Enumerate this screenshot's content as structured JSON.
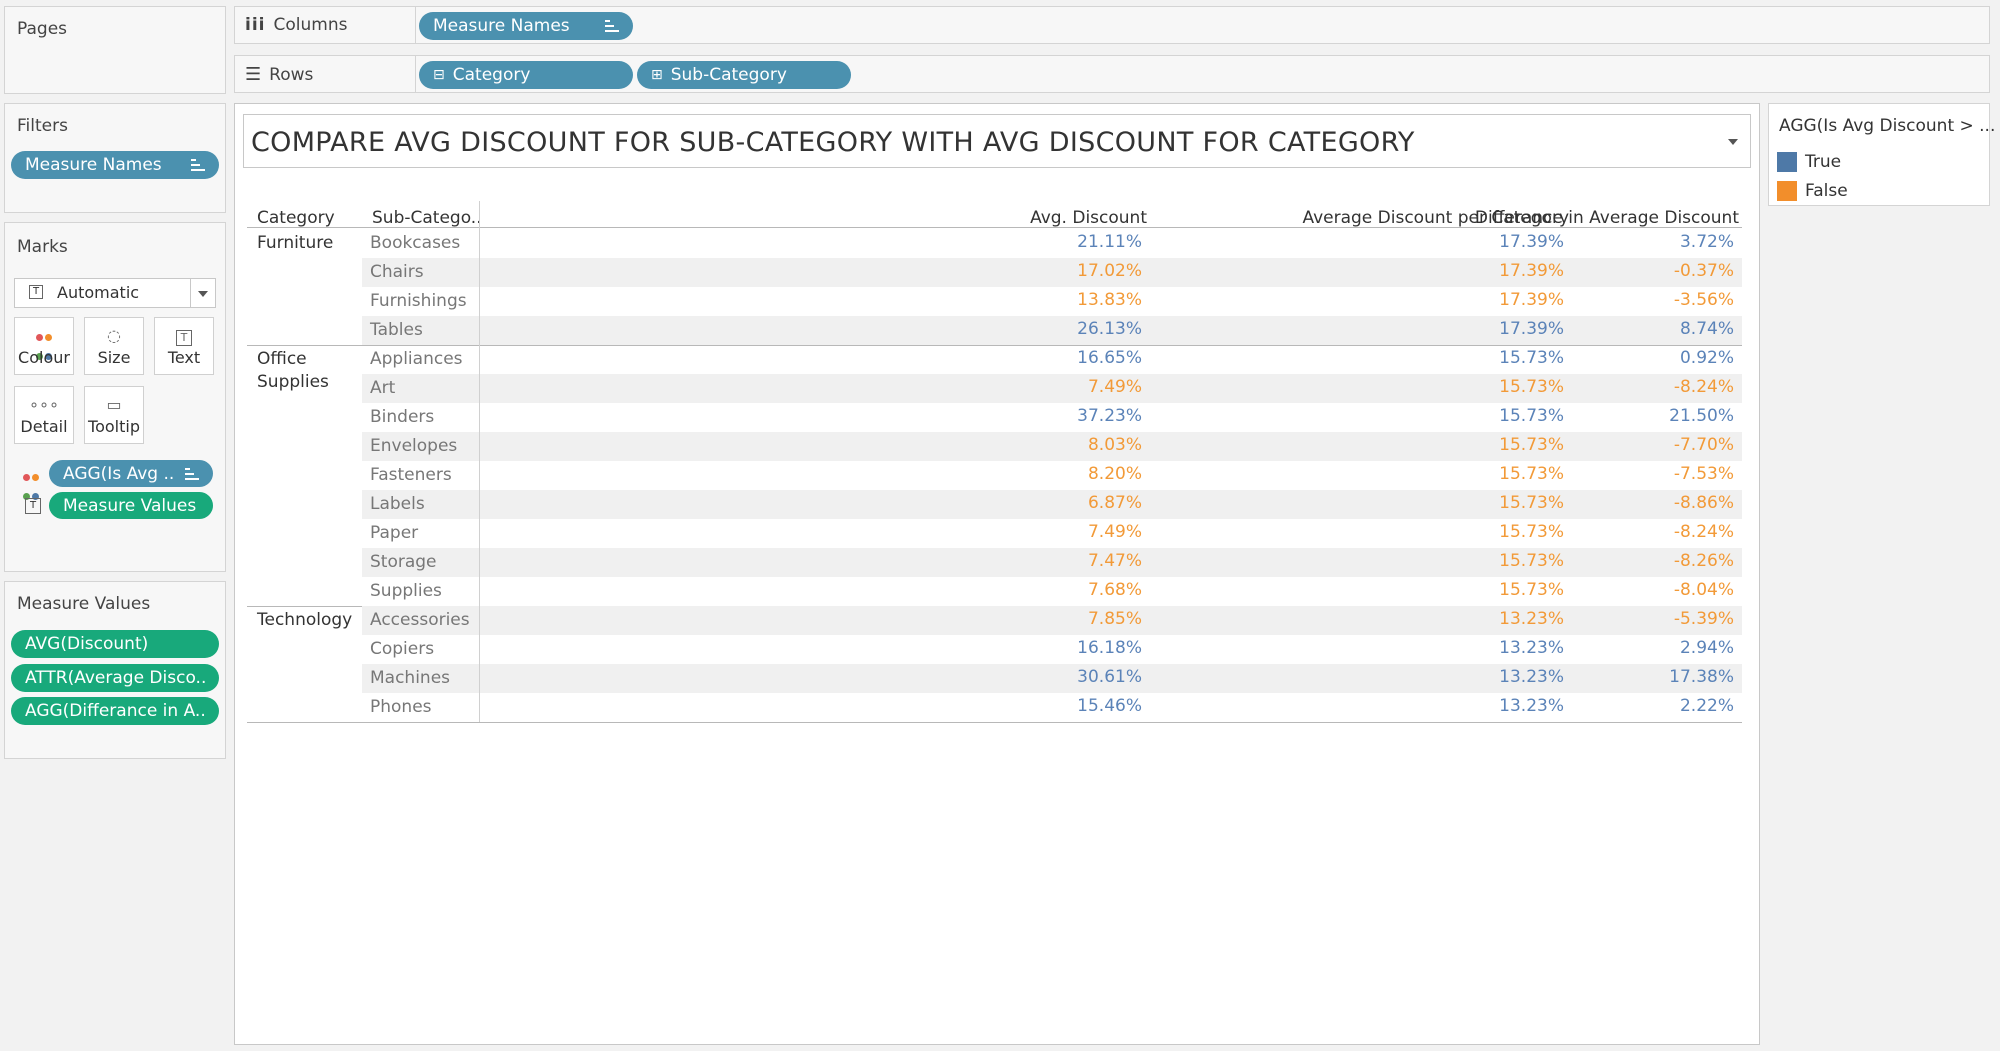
{
  "shelves": {
    "pages_label": "Pages",
    "columns_label": "Columns",
    "rows_label": "Rows",
    "columns_pill": "Measure Names",
    "rows_pills": [
      "Category",
      "Sub-Category"
    ]
  },
  "filters": {
    "title": "Filters",
    "pill": "Measure Names"
  },
  "marks": {
    "title": "Marks",
    "type_select": "Automatic",
    "buttons": [
      "Colour",
      "Size",
      "Text",
      "Detail",
      "Tooltip"
    ],
    "pills": [
      "AGG(Is Avg ..",
      "Measure Values"
    ]
  },
  "measure_values": {
    "title": "Measure Values",
    "pills": [
      "AVG(Discount)",
      "ATTR(Average Disco..",
      "AGG(Differance in A.."
    ]
  },
  "viz": {
    "title": "COMPARE AVG DISCOUNT FOR SUB-CATEGORY WITH AVG DISCOUNT FOR CATEGORY",
    "headers": [
      "Category",
      "Sub-Catego..",
      "Avg. Discount",
      "Average Discount per Category",
      "Differance in Average Discount"
    ],
    "groups": [
      {
        "category": "Furniture",
        "rows": [
          {
            "sub": "Bookcases",
            "avg": "21.11%",
            "cat": "17.39%",
            "diff": "3.72%",
            "flag": true
          },
          {
            "sub": "Chairs",
            "avg": "17.02%",
            "cat": "17.39%",
            "diff": "-0.37%",
            "flag": false
          },
          {
            "sub": "Furnishings",
            "avg": "13.83%",
            "cat": "17.39%",
            "diff": "-3.56%",
            "flag": false
          },
          {
            "sub": "Tables",
            "avg": "26.13%",
            "cat": "17.39%",
            "diff": "8.74%",
            "flag": true
          }
        ]
      },
      {
        "category": "Office Supplies",
        "rows": [
          {
            "sub": "Appliances",
            "avg": "16.65%",
            "cat": "15.73%",
            "diff": "0.92%",
            "flag": true
          },
          {
            "sub": "Art",
            "avg": "7.49%",
            "cat": "15.73%",
            "diff": "-8.24%",
            "flag": false
          },
          {
            "sub": "Binders",
            "avg": "37.23%",
            "cat": "15.73%",
            "diff": "21.50%",
            "flag": true
          },
          {
            "sub": "Envelopes",
            "avg": "8.03%",
            "cat": "15.73%",
            "diff": "-7.70%",
            "flag": false
          },
          {
            "sub": "Fasteners",
            "avg": "8.20%",
            "cat": "15.73%",
            "diff": "-7.53%",
            "flag": false
          },
          {
            "sub": "Labels",
            "avg": "6.87%",
            "cat": "15.73%",
            "diff": "-8.86%",
            "flag": false
          },
          {
            "sub": "Paper",
            "avg": "7.49%",
            "cat": "15.73%",
            "diff": "-8.24%",
            "flag": false
          },
          {
            "sub": "Storage",
            "avg": "7.47%",
            "cat": "15.73%",
            "diff": "-8.26%",
            "flag": false
          },
          {
            "sub": "Supplies",
            "avg": "7.68%",
            "cat": "15.73%",
            "diff": "-8.04%",
            "flag": false
          }
        ]
      },
      {
        "category": "Technology",
        "rows": [
          {
            "sub": "Accessories",
            "avg": "7.85%",
            "cat": "13.23%",
            "diff": "-5.39%",
            "flag": false
          },
          {
            "sub": "Copiers",
            "avg": "16.18%",
            "cat": "13.23%",
            "diff": "2.94%",
            "flag": true
          },
          {
            "sub": "Machines",
            "avg": "30.61%",
            "cat": "13.23%",
            "diff": "17.38%",
            "flag": true
          },
          {
            "sub": "Phones",
            "avg": "15.46%",
            "cat": "13.23%",
            "diff": "2.22%",
            "flag": true
          }
        ]
      }
    ]
  },
  "legend": {
    "title": "AGG(Is Avg Discount > ...",
    "items": [
      {
        "label": "True",
        "color": "#4e79a7"
      },
      {
        "label": "False",
        "color": "#f28e2b"
      }
    ]
  },
  "colors": {
    "true_text": "#5b83b8",
    "false_text": "#f29a38",
    "pill_blue": "#4b91af",
    "pill_green": "#18a97b"
  }
}
